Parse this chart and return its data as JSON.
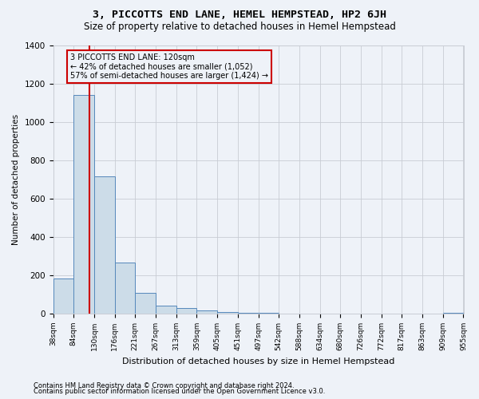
{
  "title": "3, PICCOTTS END LANE, HEMEL HEMPSTEAD, HP2 6JH",
  "subtitle": "Size of property relative to detached houses in Hemel Hempstead",
  "xlabel": "Distribution of detached houses by size in Hemel Hempstead",
  "ylabel": "Number of detached properties",
  "footnote1": "Contains HM Land Registry data © Crown copyright and database right 2024.",
  "footnote2": "Contains public sector information licensed under the Open Government Licence v3.0.",
  "annotation_line1": "3 PICCOTTS END LANE: 120sqm",
  "annotation_line2": "← 42% of detached houses are smaller (1,052)",
  "annotation_line3": "57% of semi-detached houses are larger (1,424) →",
  "property_size": 120,
  "bin_edges": [
    38,
    84,
    130,
    176,
    221,
    267,
    313,
    359,
    405,
    451,
    497,
    542,
    588,
    634,
    680,
    726,
    772,
    817,
    863,
    909,
    955
  ],
  "bar_heights": [
    185,
    1140,
    715,
    265,
    110,
    40,
    30,
    15,
    10,
    5,
    3,
    2,
    2,
    1,
    1,
    1,
    1,
    0,
    0,
    5
  ],
  "bar_facecolor": "#ccdce8",
  "bar_edgecolor": "#5588bb",
  "vline_color": "#cc0000",
  "annotation_box_color": "#cc0000",
  "ylim": [
    0,
    1400
  ],
  "background_color": "#eef2f8",
  "grid_color": "#c8ccd4",
  "title_fontsize": 9.5,
  "subtitle_fontsize": 8.5,
  "ylabel_fontsize": 7.5,
  "xlabel_fontsize": 8,
  "ytick_fontsize": 7.5,
  "xtick_fontsize": 6.5,
  "footnote_fontsize": 6,
  "annotation_fontsize": 7
}
